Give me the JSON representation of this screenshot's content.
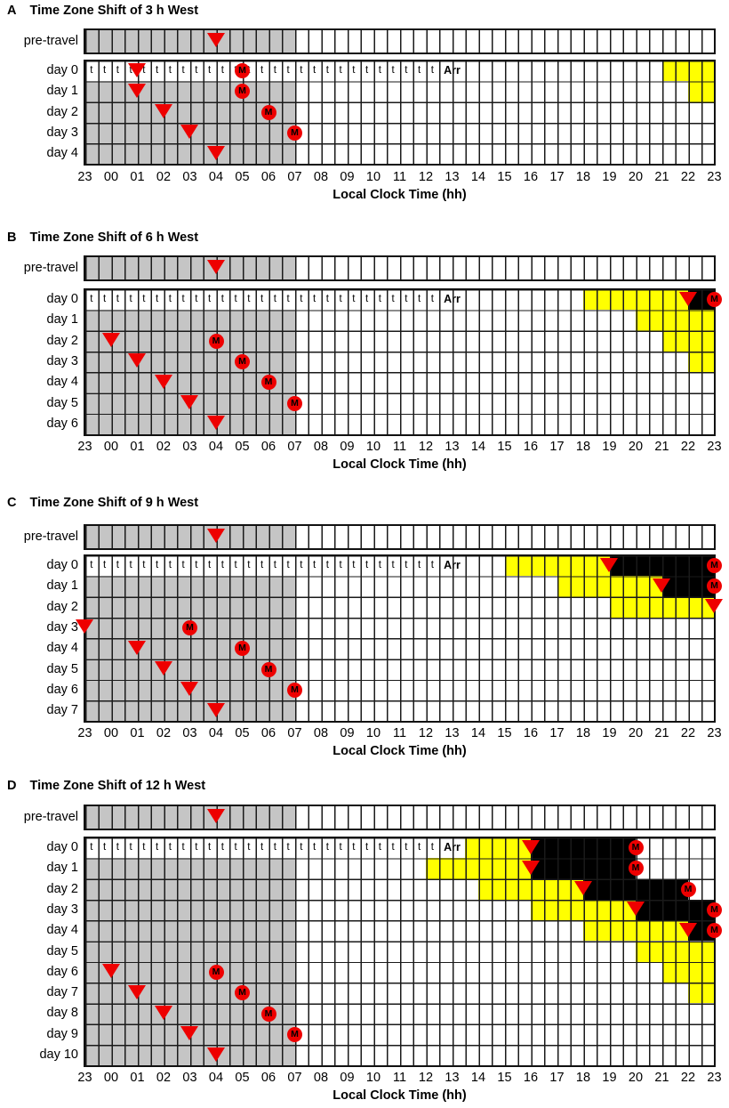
{
  "chart_data": {
    "type": "heatmap",
    "figure_kind": "time-zone-shift-schedule-grid",
    "x_axis": {
      "label": "Local Clock Time (hh)",
      "tick_labels": [
        "23",
        "00",
        "01",
        "02",
        "03",
        "04",
        "05",
        "06",
        "07",
        "08",
        "09",
        "10",
        "11",
        "12",
        "13",
        "14",
        "15",
        "16",
        "17",
        "18",
        "19",
        "20",
        "21",
        "22",
        "23"
      ],
      "grid_start_clock": "23:00",
      "hours_span": 24,
      "cell_resolution_h": 0.5
    },
    "texts": {
      "travel_letter": "t",
      "arrival_label": "Arr",
      "melatonin_letter": "M"
    },
    "colors": {
      "sleep_home_gray": "#c5c5c5",
      "light_yellow": "#ffff00",
      "sleep_dark_black": "#000000",
      "marker_red": "#ee0000",
      "grid_line": "#1a1a1a"
    },
    "panels": [
      {
        "letter": "A",
        "title": "Time Zone Shift of 3 h West",
        "pre_travel": {
          "label": "pre-travel",
          "sleep_gray_h": [
            0,
            8
          ],
          "tmin_triangle_h": 5
        },
        "days": [
          {
            "label": "day 0",
            "travel_row": true,
            "travel_cells_span_h": [
              0,
              13.5
            ],
            "arrival_span_h": [
              13.5,
              14.5
            ],
            "light_yellow_h": [
              [
                22,
                24
              ]
            ],
            "tmin_triangle_h": 2,
            "melatonin_h": 6
          },
          {
            "label": "day 1",
            "sleep_gray_h": [
              0,
              8
            ],
            "light_yellow_h": [
              [
                23,
                24
              ]
            ],
            "tmin_triangle_h": 2,
            "melatonin_h": 6
          },
          {
            "label": "day 2",
            "sleep_gray_h": [
              0,
              8
            ],
            "tmin_triangle_h": 3,
            "melatonin_h": 7
          },
          {
            "label": "day 3",
            "sleep_gray_h": [
              0,
              8
            ],
            "tmin_triangle_h": 4,
            "melatonin_h": 8
          },
          {
            "label": "day 4",
            "sleep_gray_h": [
              0,
              8
            ],
            "tmin_triangle_h": 5
          }
        ]
      },
      {
        "letter": "B",
        "title": "Time Zone Shift of 6 h West",
        "pre_travel": {
          "label": "pre-travel",
          "sleep_gray_h": [
            0,
            8
          ],
          "tmin_triangle_h": 5
        },
        "days": [
          {
            "label": "day 0",
            "travel_row": true,
            "travel_cells_span_h": [
              0,
              13.5
            ],
            "arrival_span_h": [
              13.5,
              14.5
            ],
            "light_yellow_h": [
              [
                19,
                23
              ]
            ],
            "tmin_triangle_h": 23,
            "sleep_black_h": [
              [
                23,
                24
              ]
            ],
            "melatonin_h": 24
          },
          {
            "label": "day 1",
            "sleep_gray_h": [
              0,
              8
            ],
            "light_yellow_h": [
              [
                21,
                24
              ]
            ]
          },
          {
            "label": "day 2",
            "sleep_gray_h": [
              0,
              8
            ],
            "light_yellow_h": [
              [
                22,
                24
              ]
            ],
            "tmin_triangle_h": 1,
            "melatonin_h": 5
          },
          {
            "label": "day 3",
            "sleep_gray_h": [
              0,
              8
            ],
            "light_yellow_h": [
              [
                23,
                24
              ]
            ],
            "tmin_triangle_h": 2,
            "melatonin_h": 6
          },
          {
            "label": "day 4",
            "sleep_gray_h": [
              0,
              8
            ],
            "tmin_triangle_h": 3,
            "melatonin_h": 7
          },
          {
            "label": "day 5",
            "sleep_gray_h": [
              0,
              8
            ],
            "tmin_triangle_h": 4,
            "melatonin_h": 8
          },
          {
            "label": "day 6",
            "sleep_gray_h": [
              0,
              8
            ],
            "tmin_triangle_h": 5
          }
        ]
      },
      {
        "letter": "C",
        "title": "Time Zone Shift of 9 h West",
        "pre_travel": {
          "label": "pre-travel",
          "sleep_gray_h": [
            0,
            8
          ],
          "tmin_triangle_h": 5
        },
        "days": [
          {
            "label": "day 0",
            "travel_row": true,
            "travel_cells_span_h": [
              0,
              13.5
            ],
            "arrival_span_h": [
              13.5,
              14.5
            ],
            "light_yellow_h": [
              [
                16,
                20
              ]
            ],
            "tmin_triangle_h": 20,
            "sleep_black_h": [
              [
                20,
                24
              ]
            ],
            "melatonin_h": 24
          },
          {
            "label": "day 1",
            "sleep_gray_h": [
              0,
              8
            ],
            "light_yellow_h": [
              [
                18,
                22
              ]
            ],
            "tmin_triangle_h": 22,
            "sleep_black_h": [
              [
                22,
                24
              ]
            ],
            "melatonin_h": 24
          },
          {
            "label": "day 2",
            "sleep_gray_h": [
              0,
              8
            ],
            "light_yellow_h": [
              [
                20,
                24
              ]
            ],
            "tmin_triangle_h": 24
          },
          {
            "label": "day 3",
            "sleep_gray_h": [
              0,
              8
            ],
            "tmin_triangle_h": 0,
            "melatonin_h": 4
          },
          {
            "label": "day 4",
            "sleep_gray_h": [
              0,
              8
            ],
            "tmin_triangle_h": 2,
            "melatonin_h": 6
          },
          {
            "label": "day 5",
            "sleep_gray_h": [
              0,
              8
            ],
            "tmin_triangle_h": 3,
            "melatonin_h": 7
          },
          {
            "label": "day 6",
            "sleep_gray_h": [
              0,
              8
            ],
            "tmin_triangle_h": 4,
            "melatonin_h": 8
          },
          {
            "label": "day 7",
            "sleep_gray_h": [
              0,
              8
            ],
            "tmin_triangle_h": 5
          }
        ]
      },
      {
        "letter": "D",
        "title": "Time Zone Shift of 12 h West",
        "pre_travel": {
          "label": "pre-travel",
          "sleep_gray_h": [
            0,
            8
          ],
          "tmin_triangle_h": 5
        },
        "days": [
          {
            "label": "day 0",
            "travel_row": true,
            "travel_cells_span_h": [
              0,
              13.5
            ],
            "arrival_span_h": [
              13.5,
              14.5
            ],
            "light_yellow_h": [
              [
                14.5,
                17
              ]
            ],
            "tmin_triangle_h": 17,
            "sleep_black_h": [
              [
                17,
                21
              ]
            ],
            "melatonin_h": 21
          },
          {
            "label": "day 1",
            "sleep_gray_h": [
              0,
              8
            ],
            "light_yellow_h": [
              [
                13,
                17
              ]
            ],
            "tmin_triangle_h": 17,
            "sleep_black_h": [
              [
                17,
                21
              ]
            ],
            "melatonin_h": 21
          },
          {
            "label": "day 2",
            "sleep_gray_h": [
              0,
              8
            ],
            "light_yellow_h": [
              [
                15,
                19
              ]
            ],
            "tmin_triangle_h": 19,
            "sleep_black_h": [
              [
                19,
                23
              ]
            ],
            "melatonin_h": 23
          },
          {
            "label": "day 3",
            "sleep_gray_h": [
              0,
              8
            ],
            "light_yellow_h": [
              [
                17,
                21
              ]
            ],
            "tmin_triangle_h": 21,
            "sleep_black_h": [
              [
                21,
                24
              ]
            ],
            "melatonin_h": 24
          },
          {
            "label": "day 4",
            "sleep_gray_h": [
              0,
              8
            ],
            "light_yellow_h": [
              [
                19,
                23
              ]
            ],
            "tmin_triangle_h": 23,
            "sleep_black_h": [
              [
                23,
                24
              ]
            ],
            "melatonin_h": 24
          },
          {
            "label": "day 5",
            "sleep_gray_h": [
              0,
              8
            ],
            "light_yellow_h": [
              [
                21,
                24
              ]
            ]
          },
          {
            "label": "day 6",
            "sleep_gray_h": [
              0,
              8
            ],
            "light_yellow_h": [
              [
                22,
                24
              ]
            ],
            "tmin_triangle_h": 1,
            "melatonin_h": 5
          },
          {
            "label": "day 7",
            "sleep_gray_h": [
              0,
              8
            ],
            "light_yellow_h": [
              [
                23,
                24
              ]
            ],
            "tmin_triangle_h": 2,
            "melatonin_h": 6
          },
          {
            "label": "day 8",
            "sleep_gray_h": [
              0,
              8
            ],
            "tmin_triangle_h": 3,
            "melatonin_h": 7
          },
          {
            "label": "day 9",
            "sleep_gray_h": [
              0,
              8
            ],
            "tmin_triangle_h": 4,
            "melatonin_h": 8
          },
          {
            "label": "day 10",
            "sleep_gray_h": [
              0,
              8
            ],
            "tmin_triangle_h": 5
          }
        ]
      }
    ]
  }
}
